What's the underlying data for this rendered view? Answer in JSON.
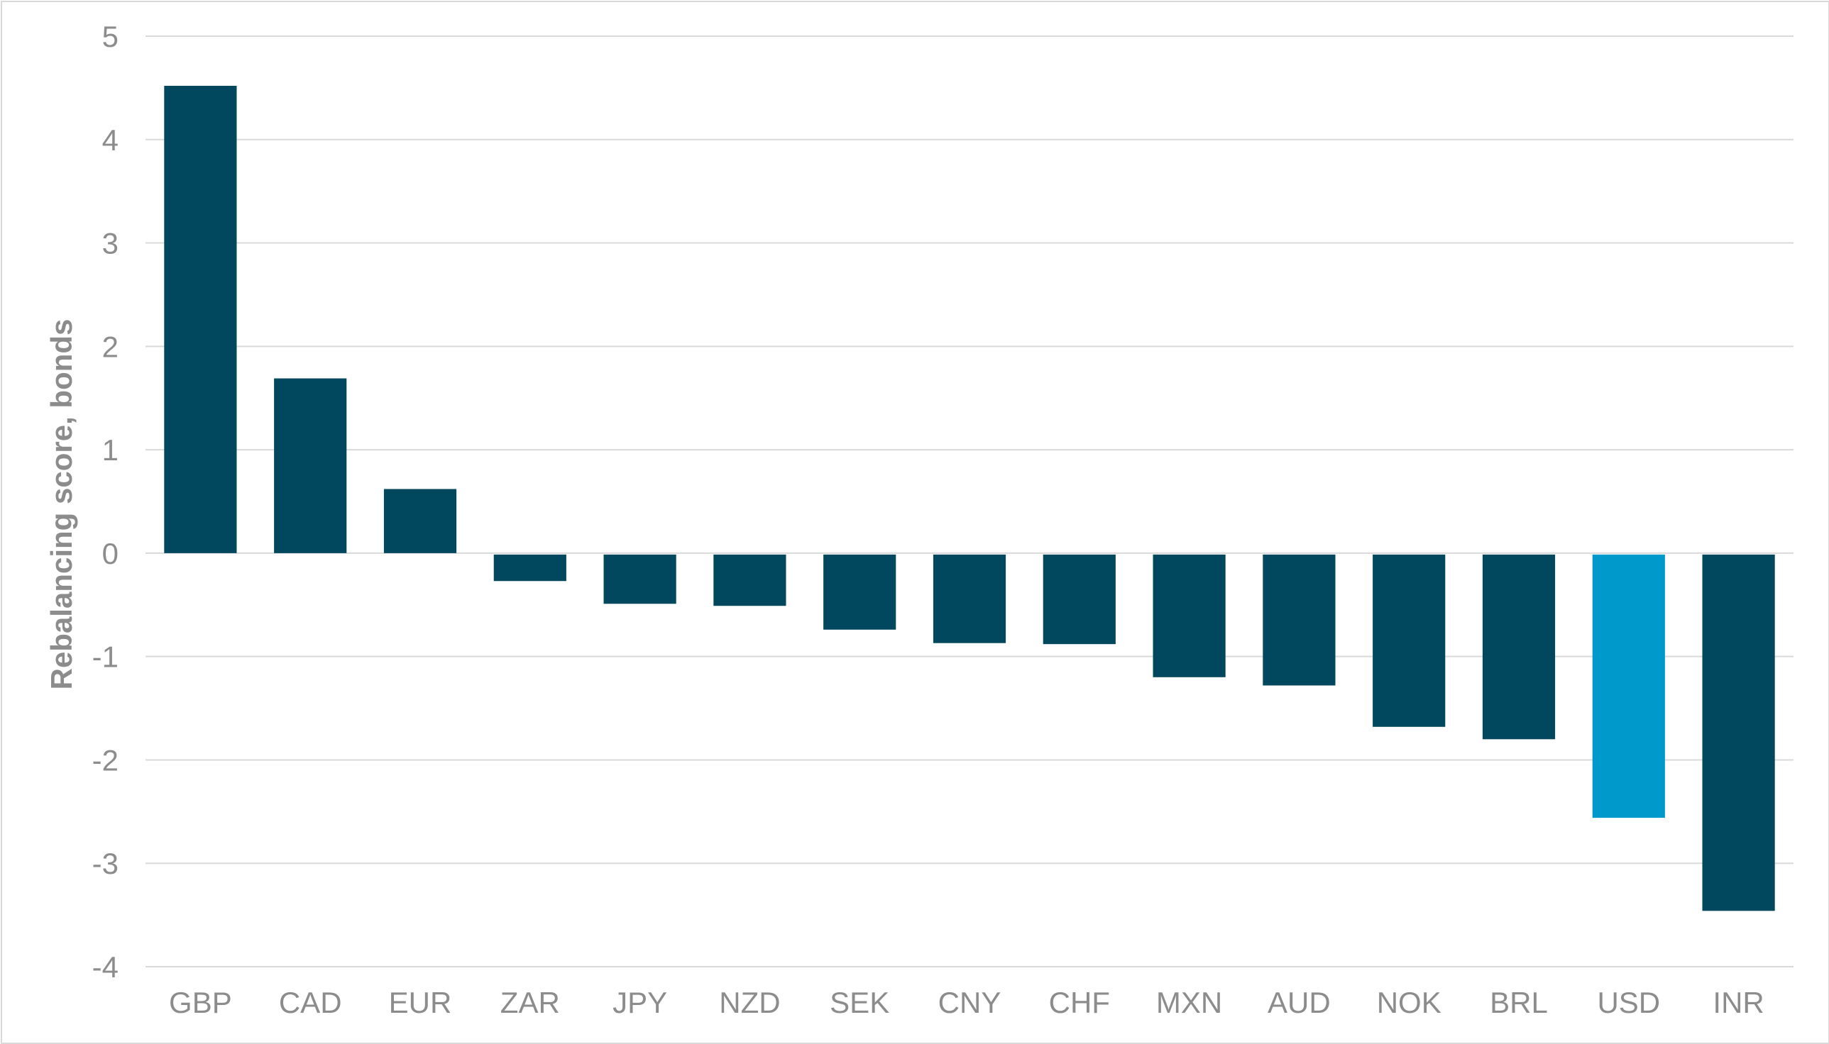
{
  "chart_data": {
    "type": "bar",
    "title": "",
    "xlabel": "",
    "ylabel": "Rebalancing score, bonds",
    "ylim": [
      -4,
      5
    ],
    "yticks": [
      5,
      4,
      3,
      2,
      1,
      0,
      -1,
      -2,
      -3,
      -4
    ],
    "grid": true,
    "categories": [
      "GBP",
      "CAD",
      "EUR",
      "ZAR",
      "JPY",
      "NZD",
      "SEK",
      "CNY",
      "CHF",
      "MXN",
      "AUD",
      "NOK",
      "BRL",
      "USD",
      "INR"
    ],
    "values": [
      4.52,
      1.69,
      0.62,
      -0.27,
      -0.49,
      -0.51,
      -0.74,
      -0.87,
      -0.88,
      -1.2,
      -1.28,
      -1.68,
      -1.8,
      -2.56,
      -3.46
    ],
    "colors": {
      "default": "#01475e",
      "highlight": "#0099cc"
    },
    "highlight_category": "USD"
  }
}
